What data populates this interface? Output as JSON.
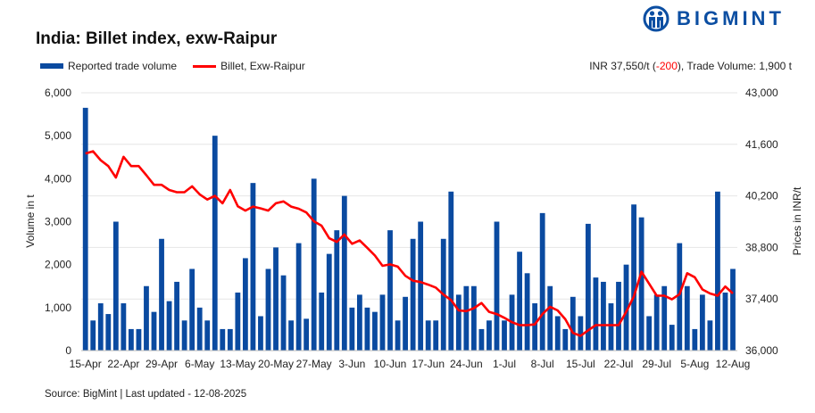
{
  "title": "India: Billet index, exw-Raipur",
  "logo": {
    "text": "BIGMINT",
    "color": "#0b4ea2"
  },
  "info": {
    "prefix": "INR 37,550/t (",
    "change": "-200",
    "suffix": "), Trade Volume: 1,900 t"
  },
  "source": "Source: BigMint | Last updated - 12-08-2025",
  "chart_data": {
    "type": "bar+line",
    "title": "India: Billet index, exw-Raipur",
    "ylabel": "Volume in t",
    "y2label": "Prices in INR/t",
    "ylim": [
      0,
      6000
    ],
    "y2lim": [
      36000,
      43000
    ],
    "yticks": [
      "0",
      "1,000",
      "2,000",
      "3,000",
      "4,000",
      "5,000",
      "6,000"
    ],
    "y2ticks": [
      "36,000",
      "37,400",
      "38,800",
      "40,200",
      "41,600",
      "43,000"
    ],
    "xtick_labels": [
      "15-Apr",
      "22-Apr",
      "29-Apr",
      "6-May",
      "13-May",
      "20-May",
      "27-May",
      "3-Jun",
      "10-Jun",
      "17-Jun",
      "24-Jun",
      "1-Jul",
      "8-Jul",
      "15-Jul",
      "22-Jul",
      "29-Jul",
      "5-Aug",
      "12-Aug"
    ],
    "grid": true,
    "legend_placement": "top-left",
    "series": [
      {
        "name": "Reported trade volume",
        "type": "bar",
        "axis": "left",
        "color": "#0a4aa0",
        "values": [
          5650,
          700,
          1100,
          850,
          3000,
          1100,
          500,
          500,
          1500,
          900,
          2600,
          1150,
          1600,
          700,
          1900,
          1000,
          700,
          5000,
          500,
          500,
          1350,
          2150,
          3900,
          800,
          1900,
          2400,
          1750,
          700,
          2500,
          740,
          4000,
          1350,
          2250,
          2800,
          3600,
          1000,
          1300,
          1000,
          900,
          1300,
          2800,
          700,
          1250,
          2600,
          3000,
          700,
          700,
          2600,
          3700,
          1300,
          1500,
          1500,
          500,
          700,
          3000,
          700,
          1300,
          2300,
          1800,
          1100,
          3200,
          1500,
          800,
          500,
          1250,
          800,
          2950,
          1700,
          1600,
          1100,
          1600,
          2000,
          3400,
          3100,
          800,
          1300,
          1500,
          600,
          2500,
          1500,
          500,
          1300,
          700,
          3700,
          1350,
          1900
        ]
      },
      {
        "name": "Billet, Exw-Raipur",
        "type": "line",
        "axis": "right",
        "color": "#ff0000",
        "values": [
          41350,
          41410,
          41170,
          41010,
          40700,
          41260,
          41010,
          41010,
          40760,
          40500,
          40500,
          40360,
          40300,
          40300,
          40460,
          40240,
          40100,
          40200,
          40000,
          40360,
          39920,
          39800,
          39910,
          39860,
          39800,
          40000,
          40050,
          39910,
          39850,
          39750,
          39510,
          39390,
          39050,
          38950,
          39150,
          38900,
          38990,
          38790,
          38580,
          38300,
          38340,
          38280,
          38030,
          37900,
          37860,
          37790,
          37710,
          37520,
          37370,
          37090,
          37070,
          37150,
          37290,
          37050,
          36990,
          36890,
          36770,
          36690,
          36690,
          36710,
          36990,
          37190,
          37090,
          36850,
          36480,
          36400,
          36550,
          36690,
          36690,
          36690,
          36690,
          37050,
          37470,
          38140,
          37820,
          37490,
          37490,
          37390,
          37530,
          38100,
          37990,
          37660,
          37550,
          37490,
          37740,
          37550
        ]
      }
    ]
  }
}
